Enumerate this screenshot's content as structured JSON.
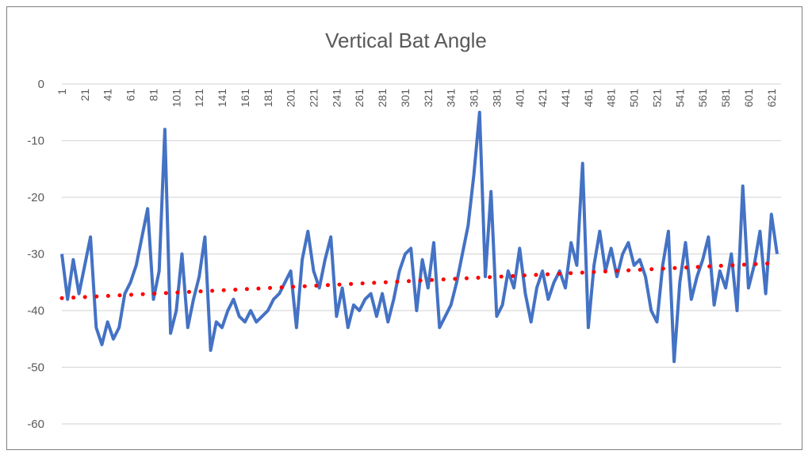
{
  "chart_data": {
    "type": "line",
    "title": "Vertical Bat Angle",
    "xlabel": "",
    "ylabel": "",
    "ylim": [
      -60,
      0
    ],
    "yticks": [
      0,
      -10,
      -20,
      -30,
      -40,
      -50,
      -60
    ],
    "xticks": [
      1,
      21,
      41,
      61,
      81,
      101,
      121,
      141,
      161,
      181,
      201,
      221,
      241,
      261,
      281,
      301,
      321,
      341,
      361,
      381,
      401,
      421,
      441,
      461,
      481,
      501,
      521,
      541,
      561,
      581,
      601,
      621
    ],
    "xlim": [
      1,
      626
    ],
    "grid": "horizontal",
    "legend": "none",
    "colors": {
      "series": "#4472C4",
      "trendline": "#FF0000",
      "grid": "#D9D9D9",
      "text": "#595959"
    },
    "series": [
      {
        "x": [
          1,
          6,
          11,
          16,
          21,
          26,
          31,
          36,
          41,
          46,
          51,
          56,
          61,
          66,
          71,
          76,
          81,
          86,
          91,
          96,
          101,
          106,
          111,
          116,
          121,
          126,
          131,
          136,
          141,
          146,
          151,
          156,
          161,
          166,
          171,
          176,
          181,
          186,
          191,
          196,
          201,
          206,
          211,
          216,
          221,
          226,
          231,
          236,
          241,
          246,
          251,
          256,
          261,
          266,
          271,
          276,
          281,
          286,
          291,
          296,
          301,
          306,
          311,
          316,
          321,
          326,
          331,
          336,
          341,
          346,
          351,
          356,
          361,
          366,
          371,
          376,
          381,
          386,
          391,
          396,
          401,
          406,
          411,
          416,
          421,
          426,
          431,
          436,
          441,
          446,
          451,
          456,
          461,
          466,
          471,
          476,
          481,
          486,
          491,
          496,
          501,
          506,
          511,
          516,
          521,
          526,
          531,
          536,
          541,
          546,
          551,
          556,
          561,
          566,
          571,
          576,
          581,
          586,
          591,
          596,
          601,
          606,
          611,
          616,
          621,
          626
        ],
        "values": [
          -30,
          -38,
          -31,
          -37,
          -32,
          -27,
          -43,
          -46,
          -42,
          -45,
          -43,
          -37,
          -35,
          -32,
          -27,
          -22,
          -38,
          -33,
          -8,
          -44,
          -40,
          -30,
          -43,
          -38,
          -34,
          -27,
          -47,
          -42,
          -43,
          -40,
          -38,
          -41,
          -42,
          -40,
          -42,
          -41,
          -40,
          -38,
          -37,
          -35,
          -33,
          -43,
          -31,
          -26,
          -33,
          -36,
          -31,
          -27,
          -41,
          -36,
          -43,
          -39,
          -40,
          -38,
          -37,
          -41,
          -37,
          -42,
          -38,
          -33,
          -30,
          -29,
          -40,
          -31,
          -36,
          -28,
          -43,
          -41,
          -39,
          -35,
          -30,
          -25,
          -16,
          -5,
          -34,
          -19,
          -41,
          -39,
          -33,
          -36,
          -29,
          -37,
          -42,
          -36,
          -33,
          -38,
          -35,
          -33,
          -36,
          -28,
          -32,
          -14,
          -43,
          -32,
          -26,
          -33,
          -29,
          -34,
          -30,
          -28,
          -32,
          -31,
          -34,
          -40,
          -42,
          -32,
          -26,
          -49,
          -35,
          -28,
          -38,
          -34,
          -31,
          -27,
          -39,
          -33,
          -36,
          -30,
          -40,
          -18,
          -36,
          -32,
          -26,
          -37,
          -23,
          -30
        ]
      }
    ],
    "trendline": {
      "type": "linear",
      "style": "dotted",
      "start_value": -37.8,
      "end_value": -31.6
    }
  }
}
